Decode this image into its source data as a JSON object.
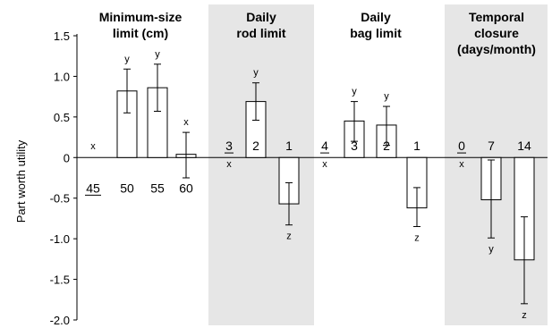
{
  "chart_data": {
    "type": "bar",
    "ylabel": "Part worth utility",
    "ylim": [
      -2.0,
      1.5
    ],
    "yticks": [
      "1.5",
      "1.0",
      "0.5",
      "0",
      "-0.5",
      "-1.0",
      "-1.5",
      "-2.0"
    ],
    "groups": [
      {
        "title_lines": [
          "Minimum-size",
          "limit (cm)"
        ],
        "shaded": false,
        "bars": [
          {
            "label": "45",
            "value": 0.0,
            "err_low": 0.0,
            "err_high": 0.0,
            "sig": "x",
            "reference": true
          },
          {
            "label": "50",
            "value": 0.82,
            "err_low": 0.55,
            "err_high": 1.09,
            "sig": "y"
          },
          {
            "label": "55",
            "value": 0.86,
            "err_low": 0.57,
            "err_high": 1.15,
            "sig": "y"
          },
          {
            "label": "60",
            "value": 0.04,
            "err_low": -0.25,
            "err_high": 0.31,
            "sig": "x"
          }
        ]
      },
      {
        "title_lines": [
          "Daily",
          "rod limit"
        ],
        "shaded": true,
        "bars": [
          {
            "label": "3",
            "value": 0.0,
            "err_low": 0.0,
            "err_high": 0.0,
            "sig": "x",
            "reference": true
          },
          {
            "label": "2",
            "value": 0.69,
            "err_low": 0.46,
            "err_high": 0.92,
            "sig": "y"
          },
          {
            "label": "1",
            "value": -0.57,
            "err_low": -0.83,
            "err_high": -0.31,
            "sig": "z"
          }
        ]
      },
      {
        "title_lines": [
          "Daily",
          "bag limit"
        ],
        "shaded": false,
        "bars": [
          {
            "label": "4",
            "value": 0.0,
            "err_low": 0.0,
            "err_high": 0.0,
            "sig": "x",
            "reference": true
          },
          {
            "label": "3",
            "value": 0.45,
            "err_low": 0.2,
            "err_high": 0.69,
            "sig": "y"
          },
          {
            "label": "2",
            "value": 0.4,
            "err_low": 0.15,
            "err_high": 0.63,
            "sig": "y"
          },
          {
            "label": "1",
            "value": -0.62,
            "err_low": -0.85,
            "err_high": -0.37,
            "sig": "z"
          }
        ]
      },
      {
        "title_lines": [
          "Temporal",
          "closure",
          "(days/month)"
        ],
        "shaded": true,
        "bars": [
          {
            "label": "0",
            "value": 0.0,
            "err_low": 0.0,
            "err_high": 0.0,
            "sig": "x",
            "reference": true
          },
          {
            "label": "7",
            "value": -0.52,
            "err_low": -0.99,
            "err_high": -0.03,
            "sig": "y"
          },
          {
            "label": "14",
            "value": -1.26,
            "err_low": -1.8,
            "err_high": -0.73,
            "sig": "z"
          }
        ]
      }
    ]
  }
}
